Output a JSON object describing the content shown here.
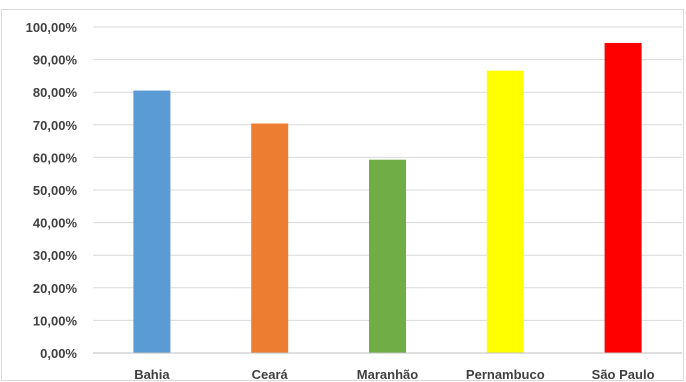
{
  "chart_data": {
    "type": "bar",
    "title": "",
    "xlabel": "",
    "ylabel": "",
    "categories": [
      "Bahia",
      "Ceará",
      "Maranhão",
      "Pernambuco",
      "São Paulo"
    ],
    "values": [
      80.5,
      70.4,
      59.3,
      86.6,
      95.1
    ],
    "colors": [
      "#5b9bd5",
      "#ed7d31",
      "#70ad47",
      "#ffff00",
      "#ff0000"
    ],
    "ylim": [
      0,
      100
    ],
    "yticks": [
      0,
      10,
      20,
      30,
      40,
      50,
      60,
      70,
      80,
      90,
      100
    ],
    "ytick_labels": [
      "0,00%",
      "10,00%",
      "20,00%",
      "30,00%",
      "40,00%",
      "50,00%",
      "60,00%",
      "70,00%",
      "80,00%",
      "90,00%",
      "100,00%"
    ],
    "grid": true,
    "gridline_color": "#d9d9d9",
    "axis_color": "#bfbfbf",
    "legend": "none"
  }
}
